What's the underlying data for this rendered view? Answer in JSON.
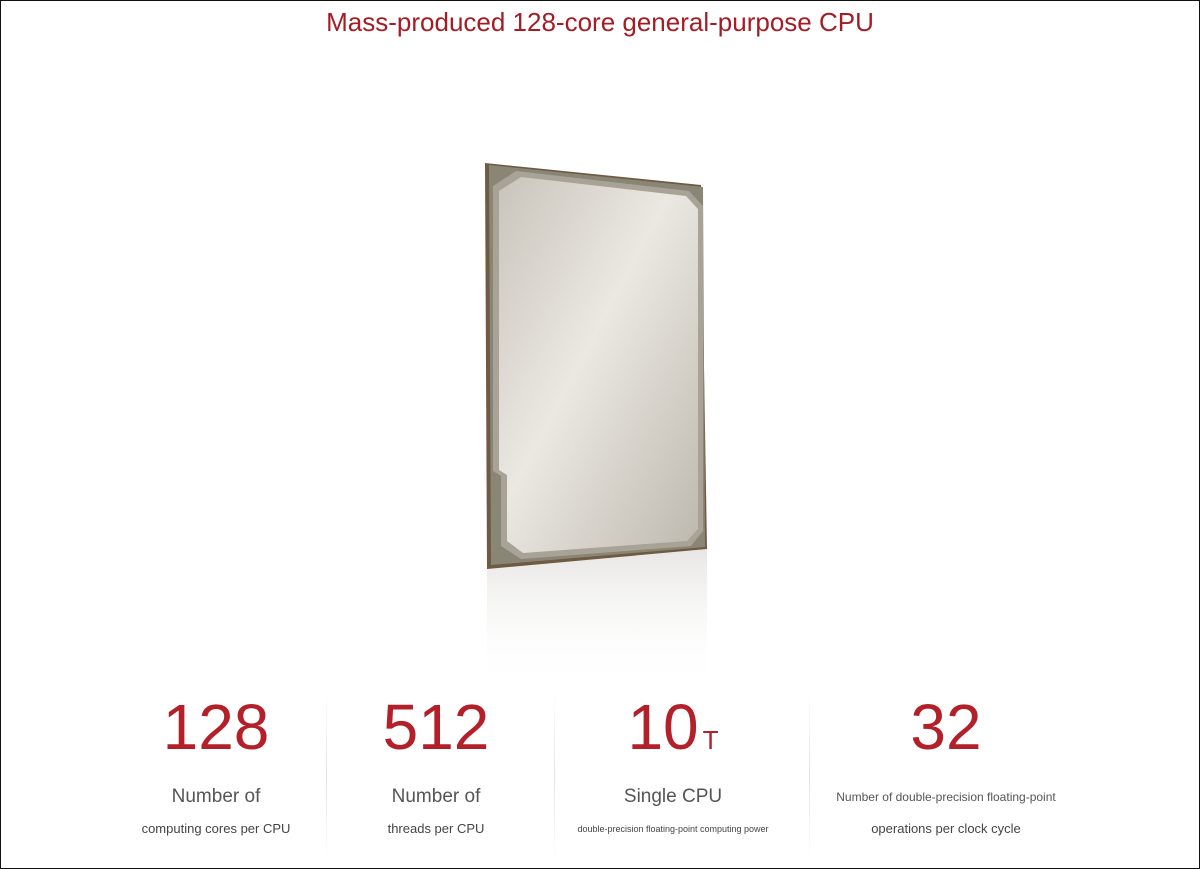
{
  "title": "Mass-produced 128-core general-purpose CPU",
  "stats": [
    {
      "value": "128",
      "line1": "Number of",
      "line2": "computing cores per CPU"
    },
    {
      "value": "512",
      "line1": "Number of",
      "line2": "threads per CPU"
    },
    {
      "value": "10",
      "unit": "T",
      "line1": "Single CPU",
      "line2": "double-precision floating-point computing power"
    },
    {
      "value": "32",
      "line1": "Number of double-precision floating-point",
      "line2": "operations per clock cycle"
    }
  ]
}
